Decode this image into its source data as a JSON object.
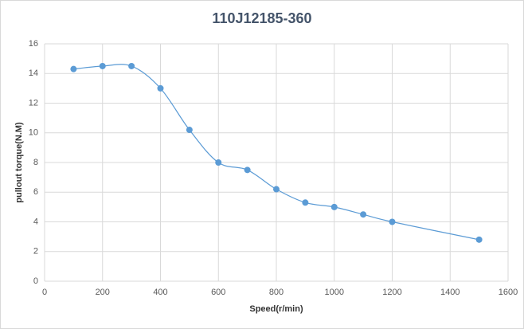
{
  "chart_data": {
    "type": "scatter",
    "title": "110J12185-360",
    "xlabel": "Speed(r/min)",
    "ylabel": "pullout torque(N.M)",
    "x": [
      100,
      200,
      300,
      400,
      500,
      600,
      700,
      800,
      900,
      1000,
      1100,
      1200,
      1500
    ],
    "series": [
      {
        "color": "#5b9bd5",
        "values": [
          14.3,
          14.5,
          14.5,
          13,
          10.2,
          8,
          7.5,
          6.2,
          5.3,
          5,
          4.5,
          4,
          2.8
        ]
      }
    ],
    "smooth": true,
    "grid": true,
    "xlim": [
      0,
      1600
    ],
    "xticks": [
      0,
      200,
      400,
      600,
      800,
      1000,
      1200,
      1400,
      1600
    ],
    "ylim": [
      0,
      16
    ],
    "yticks": [
      0,
      2,
      4,
      6,
      8,
      10,
      12,
      14,
      16
    ]
  }
}
